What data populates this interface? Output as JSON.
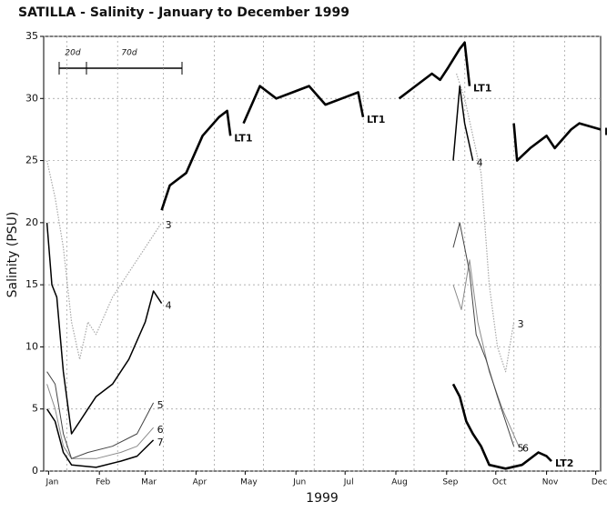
{
  "chart_data": {
    "type": "line",
    "title": "SATILLA - Salinity - January to December 1999",
    "y_label": "Salinity (PSU)",
    "x_label": "1999",
    "annotations": [
      "20d",
      "70d"
    ],
    "xlim": [
      -2,
      338
    ],
    "xticks": [
      {
        "value": 1,
        "label": "Jan"
      },
      {
        "value": 32,
        "label": "Feb"
      },
      {
        "value": 60,
        "label": "Mar"
      },
      {
        "value": 91,
        "label": "Apr"
      },
      {
        "value": 121,
        "label": "May"
      },
      {
        "value": 152,
        "label": "Jun"
      },
      {
        "value": 182,
        "label": "Jul"
      },
      {
        "value": 213,
        "label": "Aug"
      },
      {
        "value": 244,
        "label": "Sep"
      },
      {
        "value": 274,
        "label": "Oct"
      },
      {
        "value": 305,
        "label": "Nov"
      },
      {
        "value": 335,
        "label": "Dec"
      }
    ],
    "ylim": [
      0,
      35
    ],
    "yticks": [
      0,
      5,
      10,
      15,
      20,
      25,
      30,
      35
    ],
    "grid": true,
    "series": [
      {
        "name": "3",
        "color": "#a8a8a8",
        "style": "dotted",
        "x": [
          0,
          5,
          10,
          15,
          20,
          25,
          30,
          40,
          50,
          60,
          70,
          null,
          250,
          255,
          260,
          265,
          270,
          275,
          280,
          285
        ],
        "values": [
          25,
          22,
          18,
          12,
          9,
          12,
          11,
          14,
          16,
          18,
          20,
          null,
          32,
          30,
          27,
          24,
          15,
          10,
          8,
          12
        ]
      },
      {
        "name": "6",
        "color": "#8a8a8a",
        "style": "thin",
        "x": [
          0,
          5,
          10,
          15,
          30,
          45,
          55,
          65,
          null,
          248,
          253,
          258,
          263,
          270,
          278,
          288
        ],
        "values": [
          7,
          5,
          2,
          1,
          1,
          1.5,
          2,
          3.5,
          null,
          15,
          13,
          17,
          12,
          8,
          5,
          2
        ]
      },
      {
        "name": "5",
        "color": "#444444",
        "style": "thin",
        "x": [
          0,
          5,
          10,
          15,
          25,
          40,
          55,
          65,
          null,
          248,
          252,
          258,
          262,
          268,
          275,
          285
        ],
        "values": [
          8,
          7,
          3,
          1,
          1.5,
          2,
          3,
          5.5,
          null,
          18,
          20,
          16,
          11,
          9,
          6,
          2
        ]
      },
      {
        "name": "7",
        "color": "#000000",
        "style": "medium",
        "x": [
          0,
          5,
          10,
          15,
          30,
          45,
          55,
          65
        ],
        "values": [
          5,
          4,
          1.5,
          0.5,
          0.3,
          0.8,
          1.2,
          2.5
        ]
      },
      {
        "name": "4",
        "color": "#000000",
        "style": "medium",
        "x": [
          0,
          3,
          6,
          10,
          15,
          20,
          25,
          30,
          40,
          50,
          60,
          65,
          70,
          null,
          248,
          252,
          255,
          260
        ],
        "values": [
          20,
          15,
          14,
          8,
          3,
          4,
          5,
          6,
          7,
          9,
          12,
          14.5,
          13.5,
          null,
          25,
          31,
          28,
          25
        ]
      },
      {
        "name": "LT1",
        "color": "#000000",
        "style": "thick",
        "x": [
          70,
          75,
          85,
          95,
          105,
          110,
          112,
          null,
          120,
          130,
          140,
          150,
          160,
          170,
          180,
          190,
          193,
          null,
          215,
          225,
          235,
          240,
          245,
          252,
          255,
          258,
          null,
          285,
          287,
          295,
          305,
          310,
          320,
          325,
          338
        ],
        "values": [
          21,
          23,
          24,
          27,
          28.5,
          29,
          27,
          null,
          28,
          31,
          30,
          30.5,
          31,
          29.5,
          30,
          30.5,
          28.5,
          null,
          30,
          31,
          32,
          31.5,
          32.5,
          34,
          34.5,
          31,
          null,
          28,
          25,
          26,
          27,
          26,
          27.5,
          28,
          27.5
        ]
      },
      {
        "name": "LT2",
        "color": "#000000",
        "style": "thick",
        "x": [
          248,
          252,
          256,
          260,
          265,
          270,
          280,
          290,
          300,
          305,
          308
        ],
        "values": [
          7,
          6,
          4,
          3,
          2,
          0.5,
          0.2,
          0.5,
          1.5,
          1.2,
          0.8
        ]
      }
    ]
  }
}
